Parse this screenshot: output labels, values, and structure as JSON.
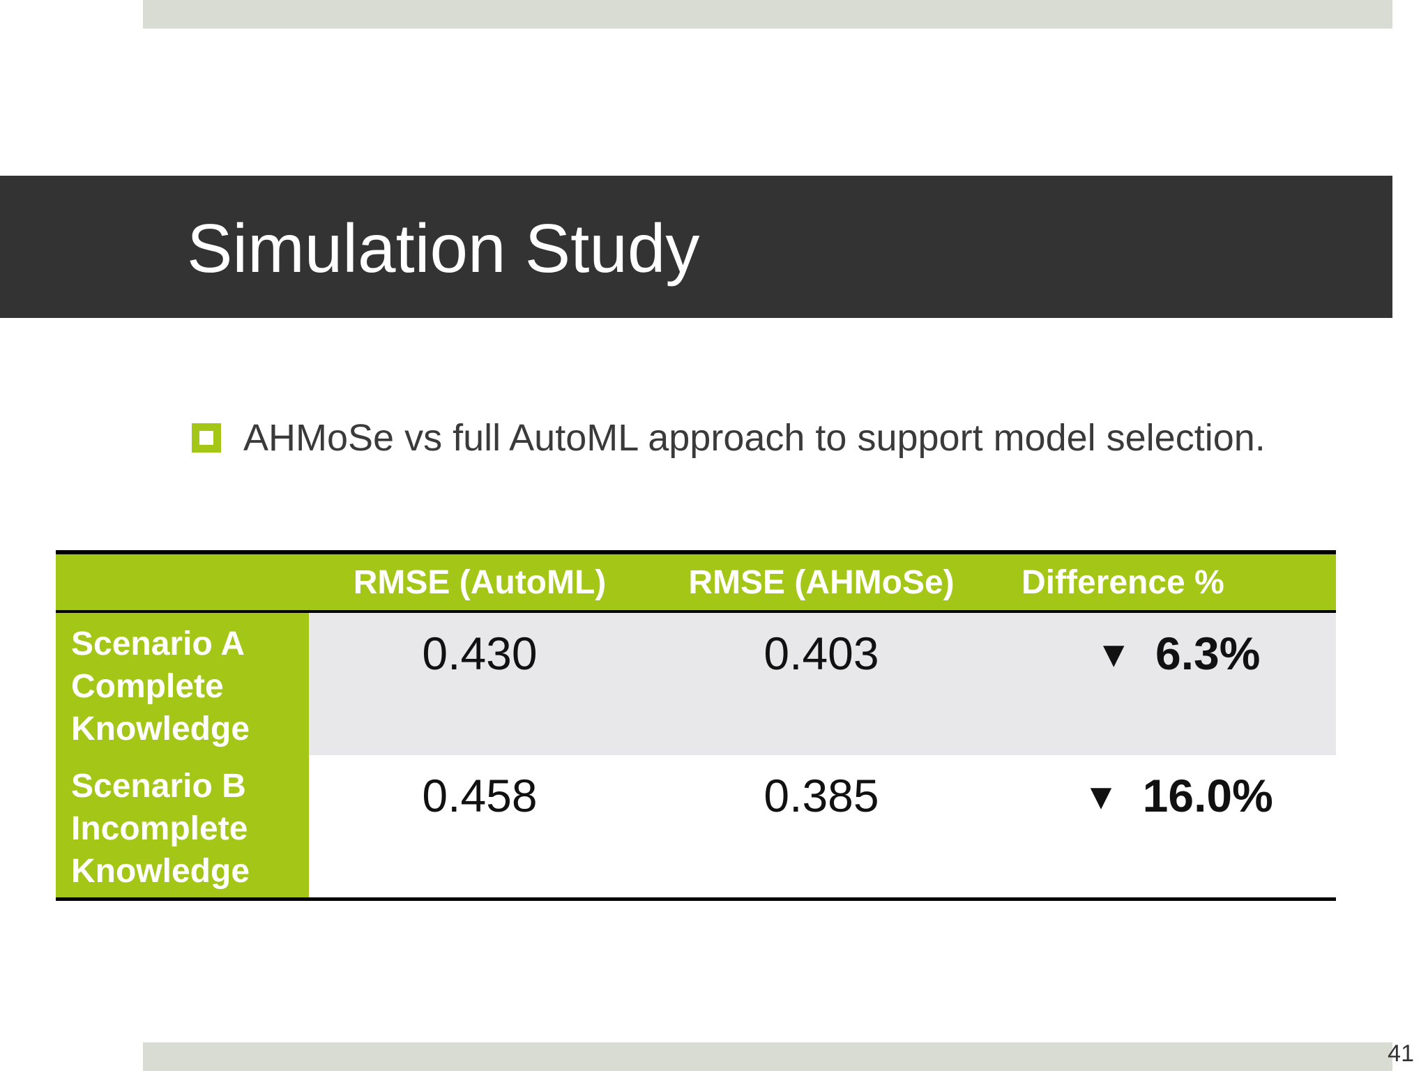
{
  "slide": {
    "title": "Simulation Study",
    "bullet": "AHMoSe vs full AutoML approach to support model selection.",
    "page_number": "41"
  },
  "table": {
    "headers": [
      "",
      "RMSE (AutoML)",
      "RMSE (AHMoSe)",
      "Difference %"
    ],
    "rows": [
      {
        "label_lines": [
          "Scenario A",
          "Complete",
          "Knowledge"
        ],
        "automl": "0.430",
        "ahmose": "0.403",
        "difference": "6.3%",
        "difference_icon": "down-arrow-icon"
      },
      {
        "label_lines": [
          "Scenario B",
          "Incomplete",
          "Knowledge"
        ],
        "automl": "0.458",
        "ahmose": "0.385",
        "difference": "16.0%",
        "difference_icon": "down-arrow-icon"
      }
    ]
  },
  "colors": {
    "accent_green": "#a3c617",
    "title_bar": "#333333",
    "difference_text": "#a3560a",
    "band": "#d9dcd3",
    "row_shade": "#e8e7ea"
  }
}
